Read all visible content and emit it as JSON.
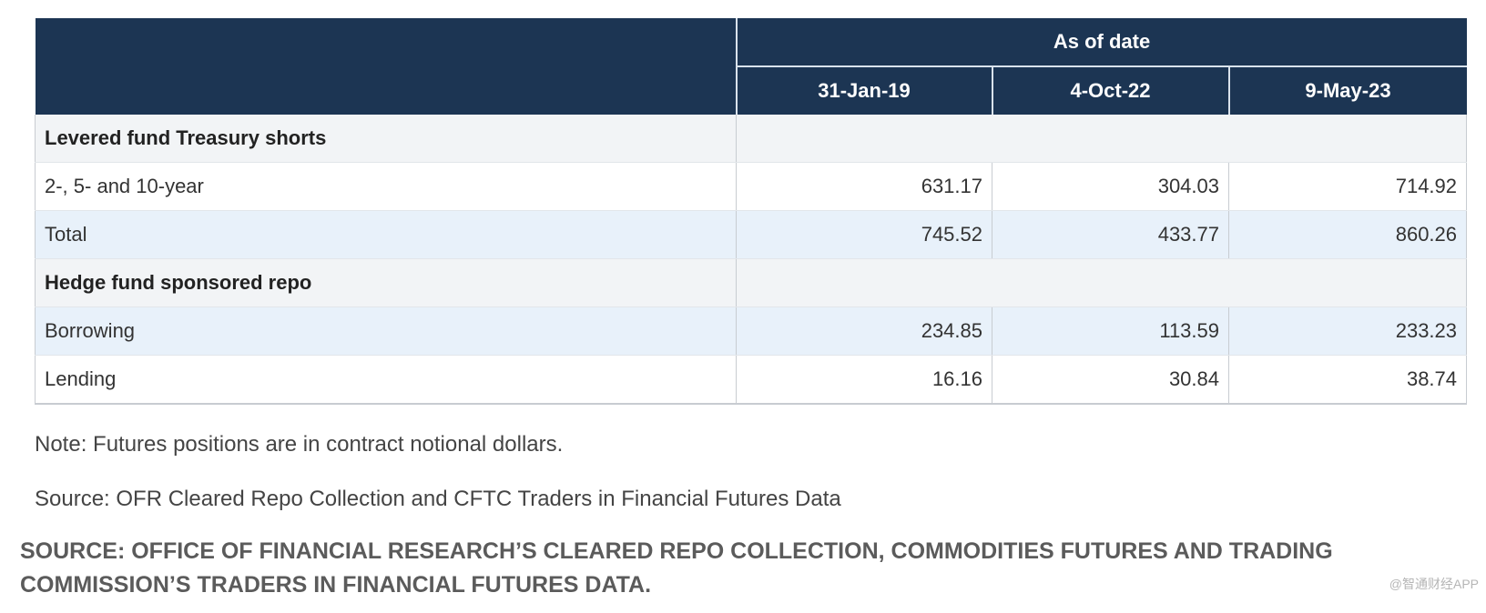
{
  "chart_data": {
    "type": "table",
    "group_header": "As of date",
    "columns": [
      "31-Jan-19",
      "4-Oct-22",
      "9-May-23"
    ],
    "sections": [
      {
        "title": "Levered fund Treasury shorts",
        "rows": [
          {
            "label": "2-, 5- and 10-year",
            "values": [
              "631.17",
              "304.03",
              "714.92"
            ]
          },
          {
            "label": "Total",
            "values": [
              "745.52",
              "433.77",
              "860.26"
            ]
          }
        ]
      },
      {
        "title": "Hedge fund sponsored repo",
        "rows": [
          {
            "label": "Borrowing",
            "values": [
              "234.85",
              "113.59",
              "233.23"
            ]
          },
          {
            "label": "Lending",
            "values": [
              "16.16",
              "30.84",
              "38.74"
            ]
          }
        ]
      }
    ]
  },
  "notes": {
    "note": "Note: Futures positions are in contract notional dollars.",
    "source": "Source: OFR Cleared Repo Collection and CFTC Traders in Financial Futures Data"
  },
  "caption": "SOURCE: OFFICE OF FINANCIAL RESEARCH’S CLEARED REPO COLLECTION, COMMODITIES FUTURES AND TRADING COMMISSION’S TRADERS IN FINANCIAL FUTURES DATA.",
  "watermark": "@智通财经APP"
}
